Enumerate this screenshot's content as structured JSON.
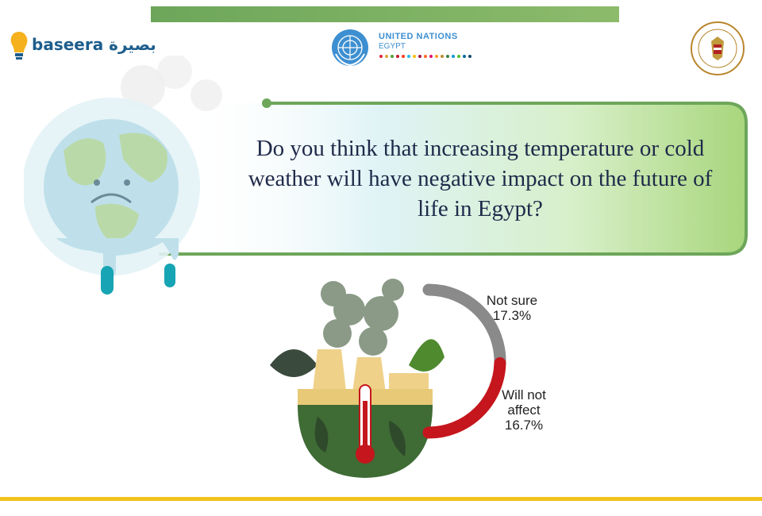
{
  "header": {
    "baseera_logo_text": "baseera بصيرة",
    "un_name": "UNITED NATIONS",
    "un_sub": "EGYPT"
  },
  "question": "Do you think that increasing temperature or cold weather will have negative impact on the future of life in Egypt?",
  "colors": {
    "not_sure": "#8a8a8a",
    "will_not_affect": "#c4161c",
    "banner_green": "#6da65a",
    "bottom_rule": "#f2c21b"
  },
  "chart_data": {
    "type": "pie",
    "title": "",
    "categories": [
      "Not sure",
      "Will not affect"
    ],
    "values": [
      17.3,
      16.7
    ],
    "value_labels": [
      "17.3%",
      "16.7%"
    ],
    "label_lines": [
      [
        "Not sure",
        "17.3%"
      ],
      [
        "Will not",
        "affect",
        "16.7%"
      ]
    ]
  }
}
